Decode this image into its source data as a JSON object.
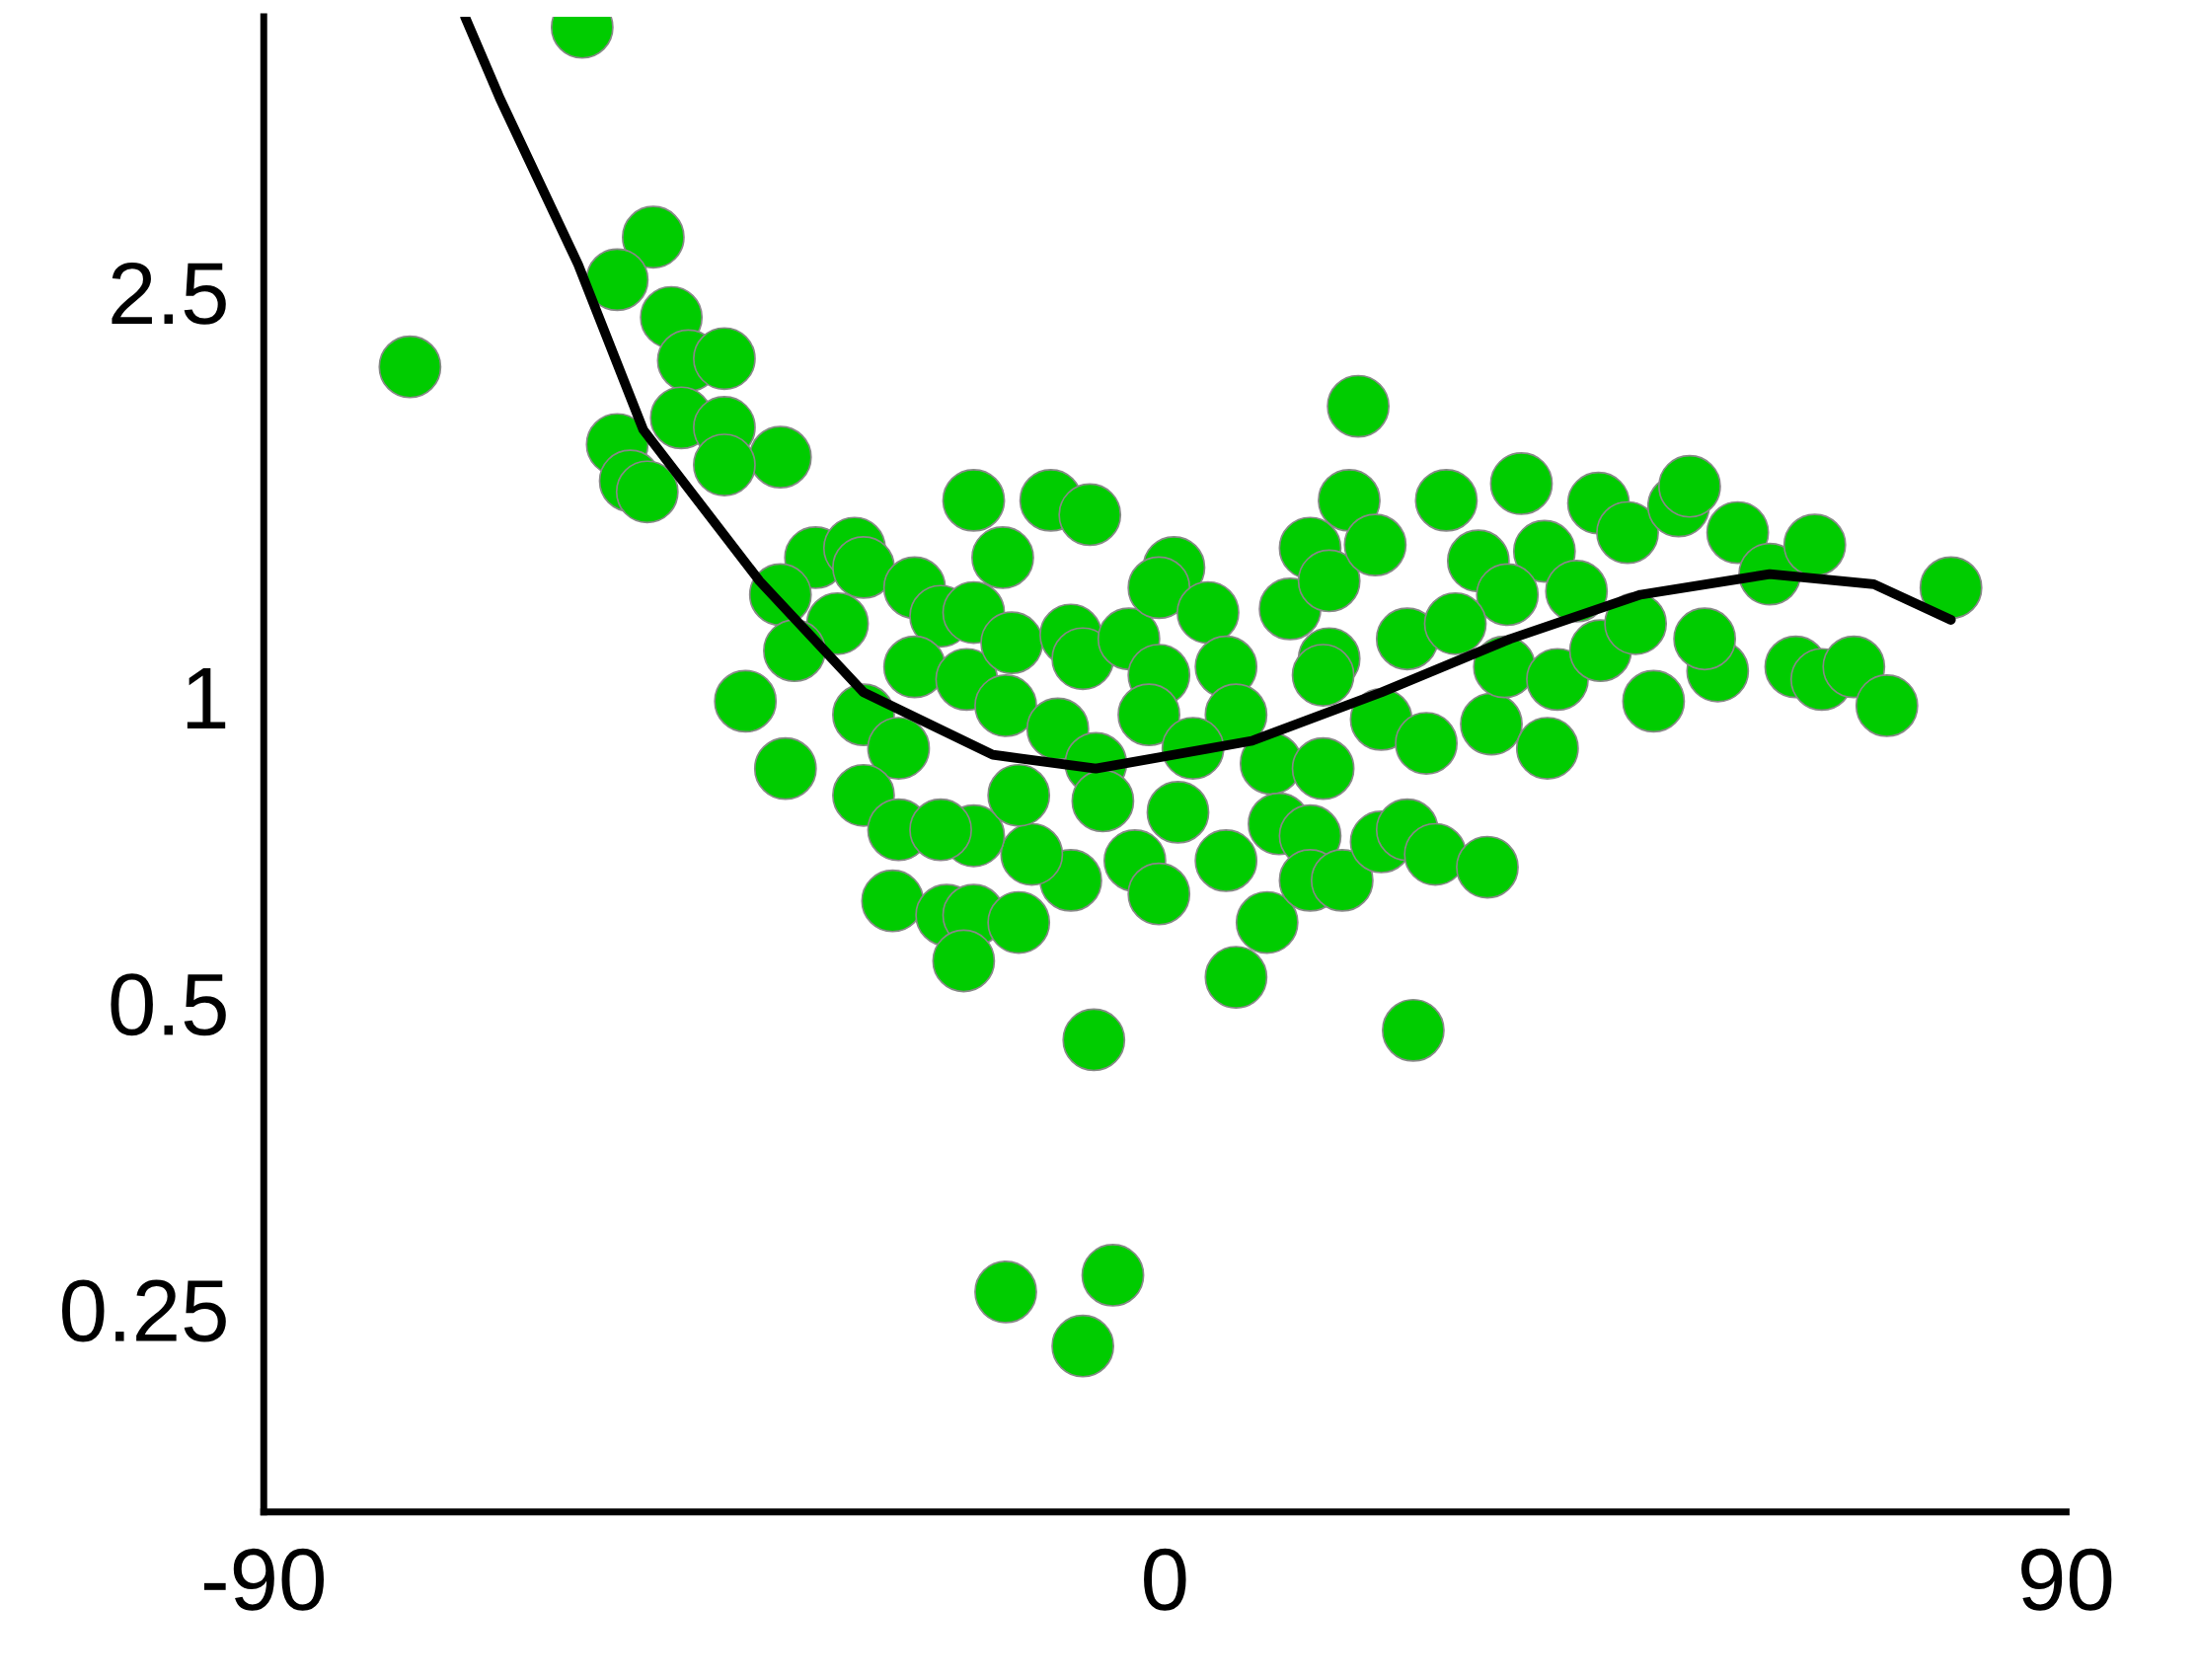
{
  "chart_data": {
    "type": "scatter",
    "log": "y",
    "xlim": [
      -90,
      90
    ],
    "ylim": [
      0.158,
      4.66
    ],
    "xticks": [
      -90,
      0,
      90
    ],
    "yticks": [
      0.25,
      0.5,
      1,
      2.5
    ],
    "grid": false,
    "marker": "circle",
    "series": [
      {
        "color": "#00cc00",
        "x": [
          -58.2,
          -75.4,
          -51.1,
          -54.7,
          -49.3,
          -47.6,
          -44.0,
          -48.3,
          -44.0,
          -54.7,
          -38.4,
          -44.0,
          -53.4,
          -51.7,
          -19.1,
          -11.4,
          -7.5,
          -16.2,
          -34.9,
          -31.0,
          -30.1,
          -38.4,
          -25.0,
          -22.4,
          -19.1,
          -32.7,
          -37.0,
          -41.9,
          -37.9,
          -30.1,
          -26.6,
          -30.1,
          -26.6,
          -27.2,
          -21.8,
          -19.1,
          -20.1,
          -14.6,
          -9.4,
          -13.3,
          -19.1,
          -22.4,
          -25.0,
          -19.8,
          -15.9,
          -15.3,
          -9.4,
          -8.2,
          -3.6,
          -0.6,
          -1.6,
          -10.7,
          -6.9,
          -14.6,
          -6.2,
          1.3,
          -3.0,
          -0.6,
          6.1,
          10.2,
          7.1,
          -7.1,
          24.8,
          -15.9,
          -5.2,
          -8.2,
          0.9,
          -0.6,
          4.3,
          6.1,
          7.1,
          2.8,
          10.6,
          15.8,
          11.4,
          14.5,
          14.5,
          17.7,
          21.6,
          24.2,
          27.0,
          32.2,
          16.4,
          12.5,
          14.5,
          16.4,
          18.4,
          19.3,
          21.0,
          15.8,
          21.6,
          26.1,
          24.2,
          28.1,
          31.3,
          35.6,
          32.6,
          38.2,
          33.9,
          39.2,
          37.9,
          43.3,
          43.5,
          48.8,
          46.2,
          51.3,
          52.4,
          55.2,
          53.9,
          57.2,
          60.4,
          64.9,
          63.0,
          65.6,
          68.8,
          72.1,
          78.5,
          34.2,
          29.0,
          41.1,
          47.0
        ],
        "values": [
          4.55,
          2.11,
          2.83,
          2.57,
          2.36,
          2.14,
          2.15,
          1.88,
          1.84,
          1.77,
          1.72,
          1.69,
          1.63,
          1.59,
          1.56,
          1.56,
          1.51,
          1.37,
          1.37,
          1.4,
          1.34,
          1.26,
          1.28,
          1.2,
          1.21,
          1.18,
          1.11,
          0.99,
          0.85,
          0.96,
          0.89,
          0.8,
          0.74,
          0.63,
          0.61,
          0.61,
          0.55,
          0.6,
          0.66,
          0.7,
          0.73,
          0.74,
          1.07,
          1.04,
          0.98,
          1.13,
          1.15,
          1.09,
          1.14,
          1.05,
          0.96,
          0.93,
          0.86,
          0.8,
          0.79,
          0.77,
          0.69,
          0.64,
          0.69,
          0.6,
          0.53,
          0.46,
          0.47,
          0.26,
          0.27,
          0.23,
          1.34,
          1.28,
          1.21,
          1.07,
          0.96,
          0.89,
          0.86,
          0.85,
          0.75,
          0.73,
          0.66,
          0.66,
          0.72,
          0.74,
          0.7,
          0.68,
          1.09,
          1.22,
          1.4,
          1.3,
          1.56,
          1.93,
          1.41,
          1.05,
          0.95,
          0.9,
          1.14,
          1.56,
          1.36,
          1.62,
          0.94,
          0.89,
          1.07,
          1.04,
          1.39,
          1.55,
          1.11,
          0.99,
          1.45,
          1.54,
          1.61,
          1.06,
          1.14,
          1.45,
          1.32,
          1.41,
          1.07,
          1.04,
          1.07,
          0.98,
          1.28,
          1.26,
          1.18,
          1.27,
          1.18
        ]
      },
      {
        "type": "line",
        "color": "#000000",
        "line_style": "solid",
        "marker": "none",
        "x": [
          -69.9,
          -66.4,
          -58.6,
          -52.1,
          -40.5,
          -30.1,
          -17.2,
          -6.9,
          8.7,
          21.6,
          34.5,
          47.5,
          60.4,
          70.8,
          78.5
        ],
        "values": [
          4.66,
          3.87,
          2.66,
          1.83,
          1.3,
          1.01,
          0.877,
          0.85,
          0.905,
          1.01,
          1.14,
          1.26,
          1.32,
          1.29,
          1.19
        ]
      }
    ]
  }
}
